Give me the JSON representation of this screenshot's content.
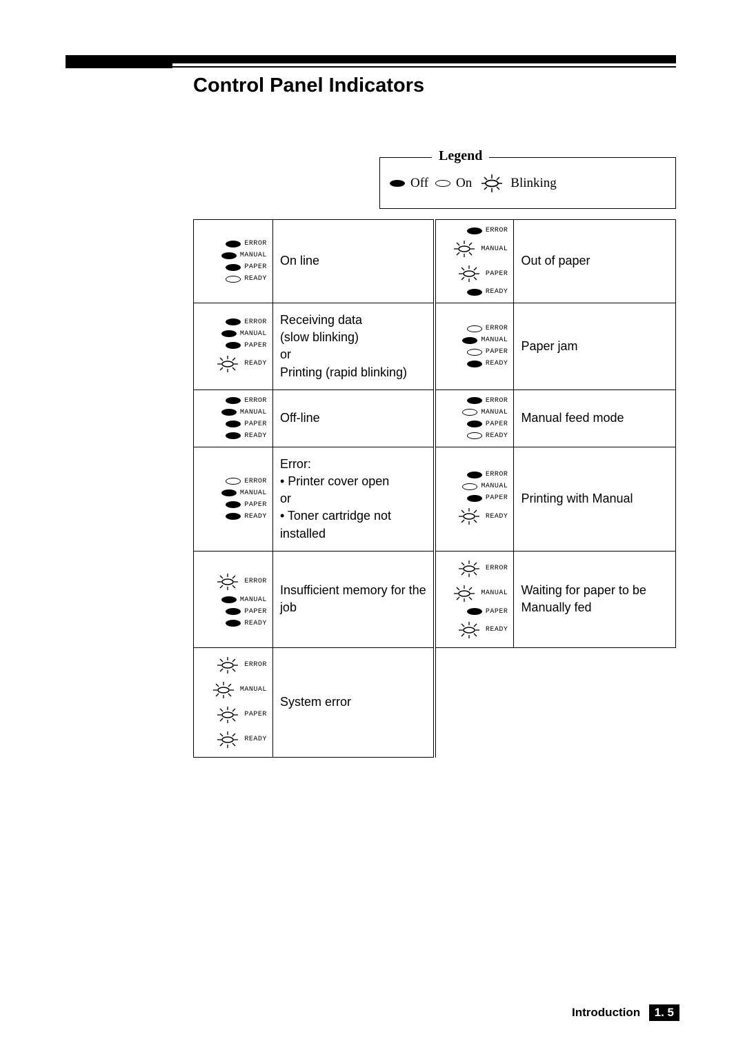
{
  "title": "Control Panel Indicators",
  "legend": {
    "title": "Legend",
    "off": "Off",
    "on": "On",
    "blink": "Blinking"
  },
  "labels": {
    "error": "ERROR",
    "manual": "MANUAL",
    "paper": "PAPER",
    "ready": "READY"
  },
  "rows": [
    {
      "left": {
        "leds": [
          "off",
          "off",
          "off",
          "on"
        ],
        "desc": "On line"
      },
      "right": {
        "leds": [
          "off",
          "blink",
          "blink",
          "off"
        ],
        "desc": "Out of paper"
      }
    },
    {
      "left": {
        "leds": [
          "off",
          "off",
          "off",
          "blink"
        ],
        "desc": "Receiving data\n(slow blinking)\nor\nPrinting (rapid blinking)"
      },
      "right": {
        "leds": [
          "on",
          "off",
          "on",
          "off"
        ],
        "desc": "Paper jam"
      }
    },
    {
      "left": {
        "leds": [
          "off",
          "off",
          "off",
          "off"
        ],
        "desc": "Off-line"
      },
      "right": {
        "leds": [
          "off",
          "on",
          "off",
          "on"
        ],
        "desc": "Manual feed mode"
      }
    },
    {
      "left": {
        "leds": [
          "on",
          "off",
          "off",
          "off"
        ],
        "desc": "Error:\n• Printer cover open\nor\n• Toner cartridge not installed"
      },
      "right": {
        "leds": [
          "off",
          "on",
          "off",
          "blink"
        ],
        "desc": "Printing with Manual"
      }
    },
    {
      "left": {
        "leds": [
          "blink",
          "off",
          "off",
          "off"
        ],
        "desc": "Insufficient memory for the job"
      },
      "right": {
        "leds": [
          "blink",
          "blink",
          "off",
          "blink"
        ],
        "desc": "Waiting for paper to be Manually fed"
      }
    },
    {
      "left": {
        "leds": [
          "blink",
          "blink",
          "blink",
          "blink"
        ],
        "desc": "System error"
      },
      "right": null
    }
  ],
  "footer": {
    "section": "Introduction",
    "page": "1. 5"
  }
}
